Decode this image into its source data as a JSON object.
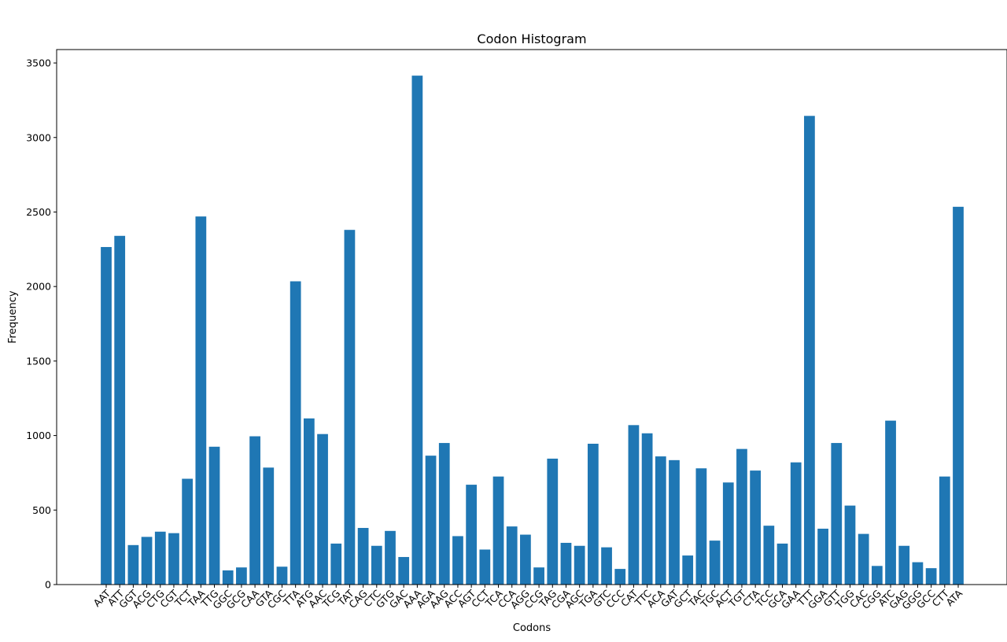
{
  "chart_data": {
    "type": "bar",
    "title": "Codon Histogram",
    "xlabel": "Codons",
    "ylabel": "Frequency",
    "ylim": [
      0,
      3590
    ],
    "yticks": [
      0,
      500,
      1000,
      1500,
      2000,
      2500,
      3000,
      3500
    ],
    "grid": false,
    "legend": "none",
    "bar_color": "#1f77b4",
    "categories": [
      "AAT",
      "ATT",
      "GGT",
      "ACG",
      "CTG",
      "CGT",
      "TCT",
      "TAA",
      "TTG",
      "GGC",
      "GCG",
      "CAA",
      "GTA",
      "CGC",
      "TTA",
      "ATG",
      "AAC",
      "TCG",
      "TAT",
      "CAG",
      "CTC",
      "GTG",
      "GAC",
      "AAA",
      "AGA",
      "AAG",
      "ACC",
      "AGT",
      "CCT",
      "TCA",
      "CCA",
      "AGG",
      "CCG",
      "TAG",
      "CGA",
      "AGC",
      "TGA",
      "GTC",
      "CCC",
      "CAT",
      "TTC",
      "ACA",
      "GAT",
      "GCT",
      "TAC",
      "TGC",
      "ACT",
      "TGT",
      "CTA",
      "TCC",
      "GCA",
      "GAA",
      "TTT",
      "GGA",
      "GTT",
      "TGG",
      "CAC",
      "CGG",
      "ATC",
      "GAG",
      "GGG",
      "GCC",
      "CTT",
      "ATA"
    ],
    "values": [
      2265,
      2340,
      265,
      320,
      355,
      345,
      710,
      2470,
      925,
      95,
      115,
      995,
      785,
      120,
      2035,
      1115,
      1010,
      275,
      2380,
      380,
      260,
      360,
      185,
      3415,
      865,
      950,
      325,
      670,
      235,
      725,
      390,
      335,
      115,
      845,
      280,
      260,
      945,
      250,
      105,
      1070,
      1015,
      860,
      835,
      195,
      780,
      295,
      685,
      910,
      765,
      395,
      275,
      820,
      3145,
      375,
      950,
      530,
      340,
      125,
      1100,
      260,
      150,
      110,
      725,
      2535
    ]
  }
}
